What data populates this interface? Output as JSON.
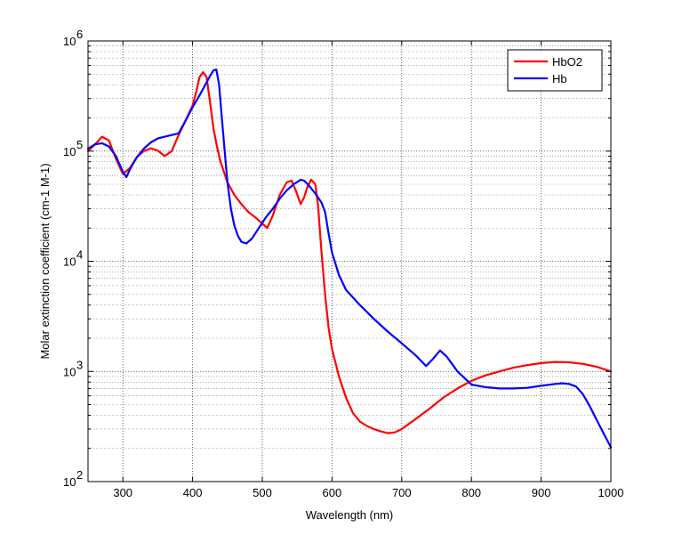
{
  "chart_data": {
    "type": "line",
    "title": "",
    "xlabel": "Wavelength (nm)",
    "ylabel": "Molar extinction coefficient (cm-1 M-1)",
    "xlim": [
      250,
      1000
    ],
    "ylim": [
      100,
      1000000
    ],
    "yscale": "log",
    "grid": "on",
    "legend_position": "top-right",
    "x_ticks": [
      300,
      400,
      500,
      600,
      700,
      800,
      900,
      1000
    ],
    "x_tick_labels": [
      "300",
      "400",
      "500",
      "600",
      "700",
      "800",
      "900",
      "1000"
    ],
    "y_ticks": [
      100,
      1000,
      10000,
      100000,
      1000000
    ],
    "y_tick_labels": [
      {
        "base": "10",
        "exp": "2"
      },
      {
        "base": "10",
        "exp": "3"
      },
      {
        "base": "10",
        "exp": "4"
      },
      {
        "base": "10",
        "exp": "5"
      },
      {
        "base": "10",
        "exp": "6"
      }
    ],
    "series": [
      {
        "name": "HbO2",
        "color": "#ff0000",
        "x": [
          250,
          260,
          270,
          280,
          290,
          300,
          310,
          320,
          330,
          340,
          350,
          360,
          370,
          380,
          390,
          400,
          405,
          410,
          415,
          420,
          425,
          430,
          435,
          440,
          450,
          460,
          470,
          480,
          490,
          500,
          507,
          515,
          525,
          535,
          542,
          548,
          555,
          560,
          565,
          570,
          576,
          580,
          585,
          590,
          595,
          600,
          610,
          620,
          630,
          640,
          650,
          660,
          670,
          680,
          690,
          700,
          720,
          740,
          760,
          780,
          800,
          820,
          840,
          860,
          880,
          900,
          920,
          940,
          960,
          980,
          1000
        ],
        "y": [
          100000,
          115000,
          135000,
          125000,
          85000,
          62000,
          70000,
          88000,
          100000,
          106000,
          101000,
          90000,
          100000,
          140000,
          190000,
          260000,
          340000,
          470000,
          520000,
          470000,
          280000,
          160000,
          110000,
          80000,
          52000,
          40000,
          33000,
          28000,
          25000,
          22000,
          20000,
          26000,
          40000,
          52000,
          54000,
          44000,
          33000,
          38000,
          48000,
          55000,
          50000,
          32000,
          12000,
          5000,
          2500,
          1600,
          900,
          580,
          420,
          350,
          320,
          300,
          285,
          275,
          280,
          300,
          370,
          460,
          580,
          700,
          820,
          920,
          1000,
          1080,
          1140,
          1190,
          1220,
          1210,
          1170,
          1100,
          1000
        ]
      },
      {
        "name": "Hb",
        "color": "#0000ff",
        "x": [
          250,
          260,
          270,
          280,
          290,
          300,
          305,
          310,
          320,
          330,
          340,
          350,
          360,
          370,
          380,
          390,
          400,
          410,
          420,
          425,
          430,
          434,
          438,
          442,
          446,
          450,
          455,
          460,
          465,
          470,
          477,
          485,
          495,
          505,
          515,
          525,
          535,
          545,
          555,
          560,
          565,
          570,
          575,
          580,
          585,
          590,
          595,
          600,
          610,
          620,
          640,
          660,
          680,
          700,
          720,
          735,
          745,
          755,
          765,
          780,
          800,
          820,
          840,
          860,
          880,
          900,
          920,
          930,
          940,
          950,
          960,
          970,
          980,
          990,
          1000
        ],
        "y": [
          105000,
          115000,
          118000,
          110000,
          90000,
          65000,
          58000,
          68000,
          88000,
          105000,
          120000,
          130000,
          135000,
          140000,
          145000,
          190000,
          250000,
          320000,
          420000,
          480000,
          540000,
          550000,
          400000,
          200000,
          100000,
          52000,
          30000,
          21000,
          17000,
          15000,
          14500,
          16000,
          20000,
          25000,
          30000,
          37000,
          44000,
          50000,
          55000,
          54000,
          50000,
          46000,
          42000,
          38000,
          34000,
          28000,
          18000,
          12000,
          7500,
          5500,
          4000,
          3000,
          2300,
          1800,
          1400,
          1120,
          1300,
          1550,
          1350,
          1000,
          760,
          720,
          700,
          700,
          710,
          740,
          770,
          780,
          770,
          730,
          620,
          480,
          360,
          270,
          205
        ]
      }
    ]
  }
}
